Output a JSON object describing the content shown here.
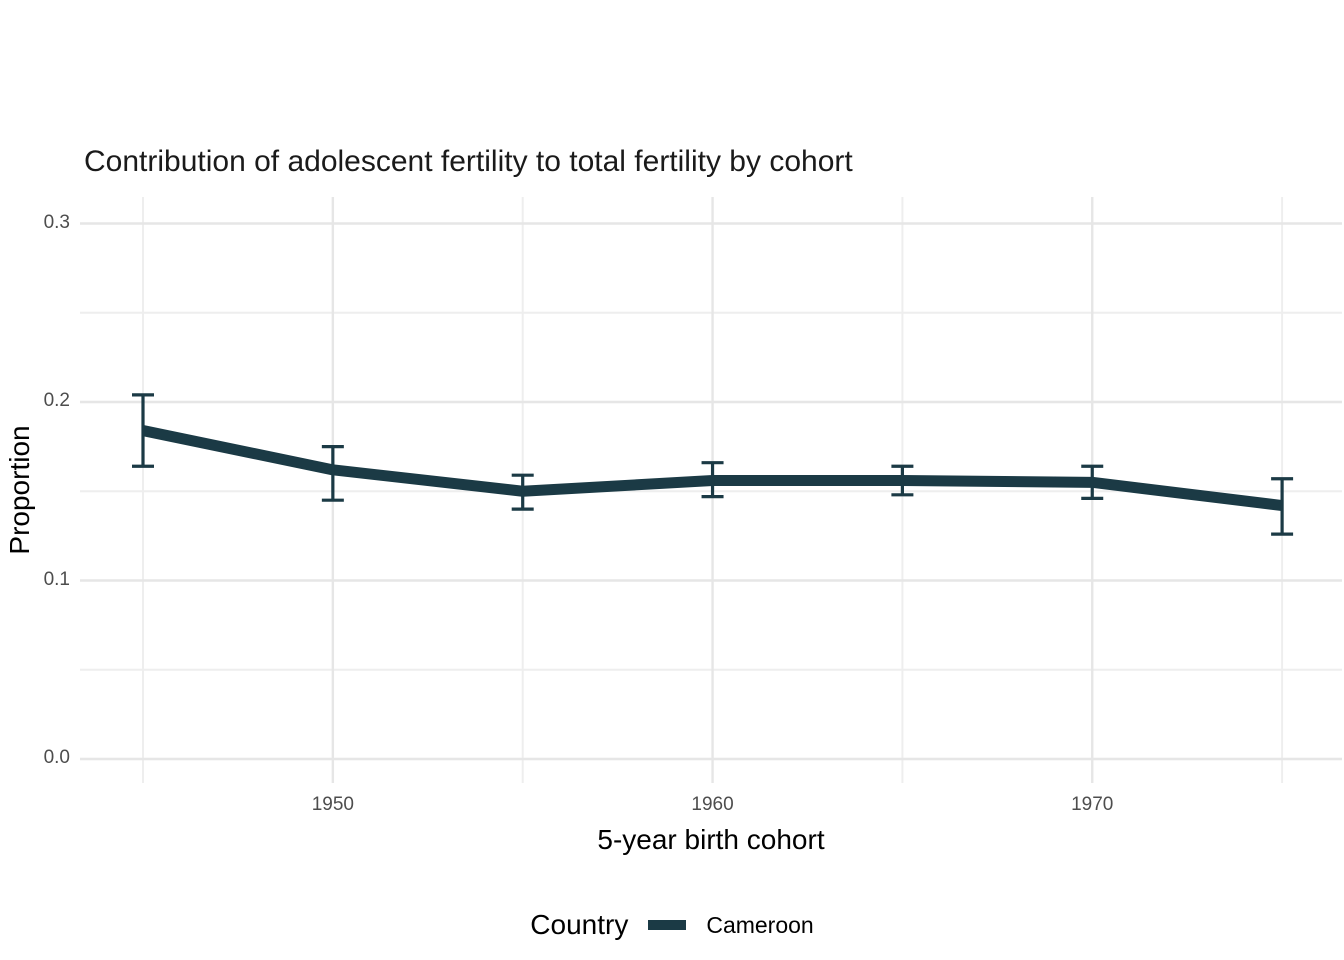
{
  "chart": {
    "title": "Contribution of adolescent fertility to total fertility by cohort",
    "x_axis": {
      "label": "5-year birth cohort",
      "tick_labels": [
        "1950",
        "1960",
        "1970"
      ]
    },
    "y_axis": {
      "label": "Proportion",
      "tick_labels": [
        "0.0",
        "0.1",
        "0.2",
        "0.3"
      ]
    },
    "legend": {
      "title": "Country",
      "items": [
        {
          "label": "Cameroon",
          "color": "#1b3a45"
        }
      ]
    }
  },
  "chart_data": {
    "type": "line",
    "title": "Contribution of adolescent fertility to total fertility by cohort",
    "xlabel": "5-year birth cohort",
    "ylabel": "Proportion",
    "x": [
      1945,
      1950,
      1955,
      1960,
      1965,
      1970,
      1975
    ],
    "series": [
      {
        "name": "Cameroon",
        "color": "#1b3a45",
        "values": [
          0.184,
          0.162,
          0.15,
          0.156,
          0.156,
          0.155,
          0.142
        ],
        "ci_low": [
          0.164,
          0.145,
          0.14,
          0.147,
          0.148,
          0.146,
          0.126
        ],
        "ci_high": [
          0.204,
          0.175,
          0.159,
          0.166,
          0.164,
          0.164,
          0.157
        ]
      }
    ],
    "error_bars": true,
    "x_ticks": [
      1950,
      1960,
      1970
    ],
    "x_minor_gridlines": [
      1945,
      1955,
      1965,
      1975
    ],
    "y_ticks": [
      0.0,
      0.1,
      0.2,
      0.3
    ],
    "y_minor_gridlines": [
      0.05,
      0.15,
      0.25
    ],
    "xlim": [
      1943.3,
      1976.7
    ],
    "ylim": [
      -0.015,
      0.315
    ],
    "grid": true,
    "legend_position": "bottom"
  },
  "colors": {
    "line": "#1b3a45",
    "grid_major": "#e6e6e6",
    "grid_minor": "#eeeeee",
    "tick_text": "#4d4d4d",
    "title_text": "#1a1a1a",
    "background": "#ffffff"
  }
}
